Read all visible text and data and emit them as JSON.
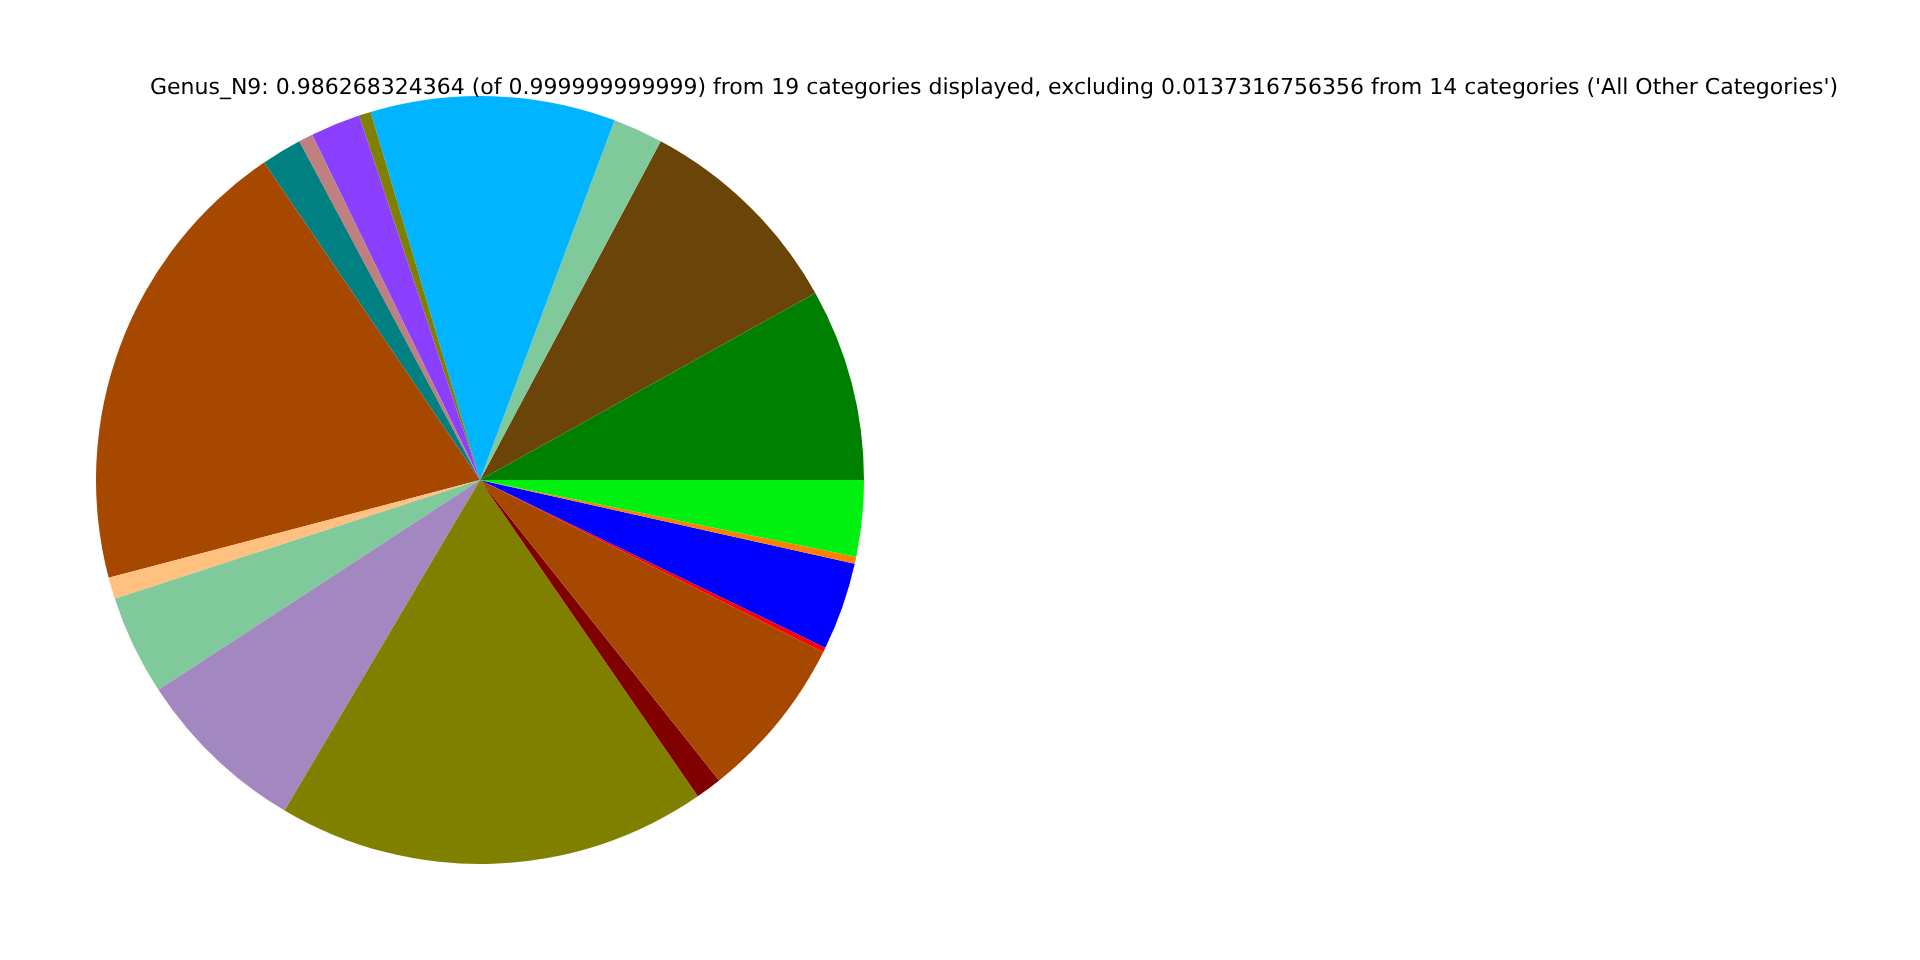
{
  "chart_data": {
    "type": "pie",
    "title": "Genus_N9: 0.986268324364 (of 0.999999999999) from 19 categories displayed, excluding 0.0137316756356 from 14 categories ('All Other Categories')",
    "categories": [
      null,
      null,
      null,
      null,
      null,
      null,
      null,
      null,
      null,
      null,
      null,
      null,
      null,
      null,
      null,
      null,
      null,
      null,
      null
    ],
    "values": [
      8.1,
      9.1,
      2.1,
      10.3,
      0.5,
      2.1,
      0.6,
      1.7,
      19.6,
      0.9,
      4.2,
      7.3,
      18.1,
      1.1,
      6.9,
      0.2,
      3.7,
      0.3,
      3.2
    ],
    "colors": [
      "#008000",
      "#6b440a",
      "#80c99b",
      "#00b4ff",
      "#808000",
      "#8c40ff",
      "#c08080",
      "#008080",
      "#a64800",
      "#ffc080",
      "#80c99b",
      "#a387c0",
      "#808000",
      "#800000",
      "#a64800",
      "#ff0000",
      "#0000ff",
      "#ff8000",
      "#00f010"
    ]
  }
}
